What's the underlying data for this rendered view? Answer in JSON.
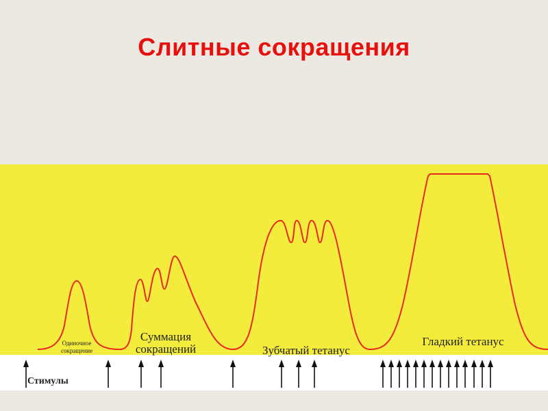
{
  "slide": {
    "title": "Слитные сокращения"
  },
  "diagram": {
    "labels": {
      "single_line1": "Одиночное",
      "single_line2": "сокращение",
      "summation_line1": "Суммация",
      "summation_line2": "сокращений",
      "serrated": "Зубчатый тетанус",
      "smooth": "Гладкий тетанус",
      "stimuli": "Стимулы"
    },
    "colors": {
      "background": "#ece9e2",
      "plot_area": "#f4ec3c",
      "stimulus_strip": "#ffffff",
      "curve": "#e8281e",
      "title": "#e8100c",
      "text": "#222222"
    }
  }
}
